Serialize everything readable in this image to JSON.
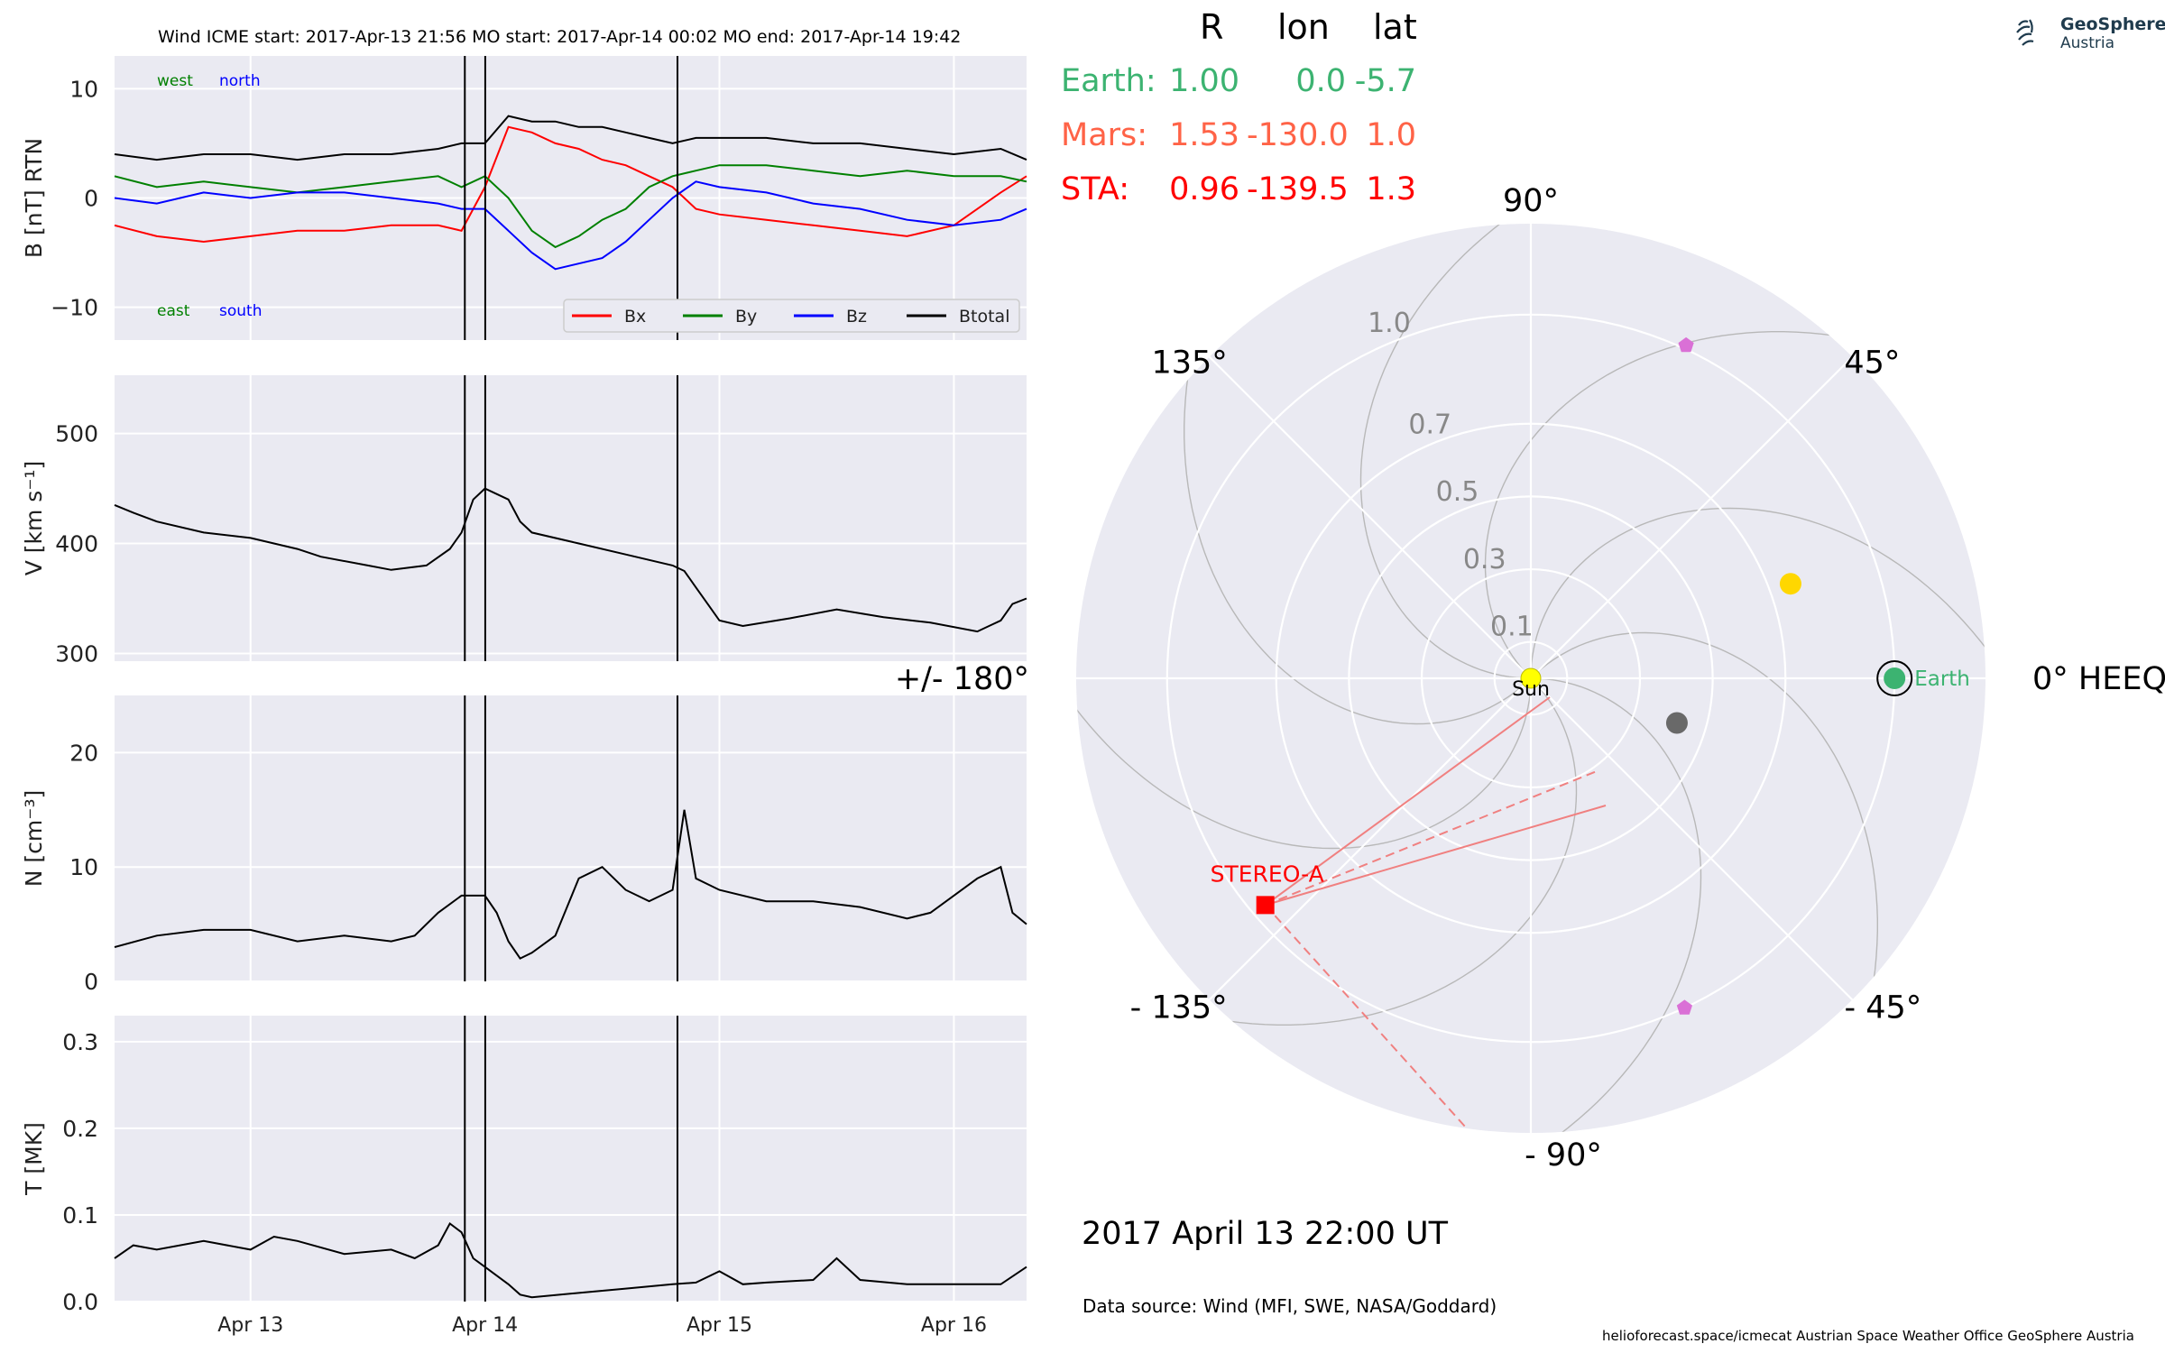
{
  "header": {
    "line": "Wind    ICME start: 2017-Apr-13 21:56   MO start: 2017-Apr-14 00:02   MO end: 2017-Apr-14 19:42"
  },
  "colors": {
    "bg_panel": "#eaeaf2",
    "bx": "#ff0000",
    "by": "#008000",
    "bz": "#0000ff",
    "btotal": "#000000",
    "earth": "#3cb371",
    "mars": "#ff6347",
    "sta": "#ff0000",
    "psp": "#ffd700",
    "solo": "#696969",
    "bepi": "#da70d6"
  },
  "logo": {
    "line1": "GeoSphere",
    "line2": "Austria",
    "icon": "geosphere-logo-icon"
  },
  "footer": {
    "date": "2017 April 13  22:00 UT",
    "source": "Data source: Wind (MFI, SWE, NASA/Goddard)",
    "credits": "helioforecast.space/icmecat   Austrian Space Weather Office   GeoSphere Austria"
  },
  "table": {
    "headers": [
      "R",
      "lon",
      "lat"
    ],
    "rows": [
      {
        "name": "Earth:",
        "R": "1.00",
        "lon": "0.0",
        "lat": "-5.7",
        "color": "#3cb371"
      },
      {
        "name": "Mars:",
        "R": "1.53",
        "lon": "-130.0",
        "lat": "1.0",
        "color": "#ff6347"
      },
      {
        "name": "STA:",
        "R": "0.96",
        "lon": "-139.5",
        "lat": "1.3",
        "color": "#ff0000"
      }
    ]
  },
  "chart_data": [
    {
      "type": "line",
      "panel": "magnetic-field",
      "ylabel": "B [nT] RTN",
      "ylim": [
        -13,
        13
      ],
      "yticks": [
        "10",
        "0",
        "−10"
      ],
      "ytick_values": [
        10,
        0,
        -10
      ],
      "grid": true,
      "legend": "bottom-right",
      "annotations": {
        "west": "west",
        "north": "north",
        "east": "east",
        "south": "south"
      },
      "x_days_range": [
        12.42,
        16.31
      ],
      "event_lines_days": [
        13.914,
        14.001,
        14.821
      ],
      "series": [
        {
          "name": "Bx",
          "color": "#ff0000",
          "x": [
            12.42,
            12.6,
            12.8,
            13.0,
            13.2,
            13.4,
            13.6,
            13.8,
            13.9,
            14.0,
            14.1,
            14.2,
            14.3,
            14.4,
            14.5,
            14.6,
            14.7,
            14.8,
            14.9,
            15.0,
            15.2,
            15.4,
            15.6,
            15.8,
            16.0,
            16.2,
            16.31
          ],
          "y": [
            -2.5,
            -3.5,
            -4,
            -3.5,
            -3,
            -3,
            -2.5,
            -2.5,
            -3,
            1,
            6.5,
            6,
            5,
            4.5,
            3.5,
            3,
            2,
            1,
            -1,
            -1.5,
            -2,
            -2.5,
            -3,
            -3.5,
            -2.5,
            0.5,
            2
          ]
        },
        {
          "name": "By",
          "color": "#008000",
          "x": [
            12.42,
            12.6,
            12.8,
            13.0,
            13.2,
            13.4,
            13.6,
            13.8,
            13.9,
            14.0,
            14.1,
            14.2,
            14.3,
            14.4,
            14.5,
            14.6,
            14.7,
            14.8,
            14.9,
            15.0,
            15.2,
            15.4,
            15.6,
            15.8,
            16.0,
            16.2,
            16.31
          ],
          "y": [
            2,
            1,
            1.5,
            1,
            0.5,
            1,
            1.5,
            2,
            1,
            2,
            0,
            -3,
            -4.5,
            -3.5,
            -2,
            -1,
            1,
            2,
            2.5,
            3,
            3,
            2.5,
            2,
            2.5,
            2,
            2,
            1.5
          ]
        },
        {
          "name": "Bz",
          "color": "#0000ff",
          "x": [
            12.42,
            12.6,
            12.8,
            13.0,
            13.2,
            13.4,
            13.6,
            13.8,
            13.9,
            14.0,
            14.1,
            14.2,
            14.3,
            14.4,
            14.5,
            14.6,
            14.7,
            14.8,
            14.9,
            15.0,
            15.2,
            15.4,
            15.6,
            15.8,
            16.0,
            16.2,
            16.31
          ],
          "y": [
            0,
            -0.5,
            0.5,
            0,
            0.5,
            0.5,
            0,
            -0.5,
            -1,
            -1,
            -3,
            -5,
            -6.5,
            -6,
            -5.5,
            -4,
            -2,
            0,
            1.5,
            1,
            0.5,
            -0.5,
            -1,
            -2,
            -2.5,
            -2,
            -1
          ]
        },
        {
          "name": "Btotal",
          "color": "#000000",
          "x": [
            12.42,
            12.6,
            12.8,
            13.0,
            13.2,
            13.4,
            13.6,
            13.8,
            13.9,
            14.0,
            14.1,
            14.2,
            14.3,
            14.4,
            14.5,
            14.6,
            14.7,
            14.8,
            14.9,
            15.0,
            15.2,
            15.4,
            15.6,
            15.8,
            16.0,
            16.2,
            16.31
          ],
          "y": [
            4,
            3.5,
            4,
            4,
            3.5,
            4,
            4,
            4.5,
            5,
            5,
            7.5,
            7,
            7,
            6.5,
            6.5,
            6,
            5.5,
            5,
            5.5,
            5.5,
            5.5,
            5,
            5,
            4.5,
            4,
            4.5,
            3.5
          ]
        }
      ]
    },
    {
      "type": "line",
      "panel": "speed",
      "ylabel": "V [km s⁻¹]",
      "ylim": [
        293,
        553
      ],
      "yticks": [
        "500",
        "400",
        "300"
      ],
      "ytick_values": [
        500,
        400,
        300
      ],
      "grid": true,
      "x_days_range": [
        12.42,
        16.31
      ],
      "event_lines_days": [
        13.914,
        14.001,
        14.821
      ],
      "series": [
        {
          "name": "",
          "color": "#000000",
          "x": [
            12.42,
            12.5,
            12.6,
            12.8,
            13.0,
            13.2,
            13.3,
            13.5,
            13.6,
            13.75,
            13.85,
            13.9,
            13.95,
            14.0,
            14.05,
            14.1,
            14.15,
            14.2,
            14.4,
            14.6,
            14.8,
            14.85,
            14.9,
            14.95,
            15.0,
            15.1,
            15.3,
            15.5,
            15.7,
            15.9,
            16.1,
            16.15,
            16.2,
            16.25,
            16.31
          ],
          "y": [
            435,
            428,
            420,
            410,
            405,
            395,
            388,
            380,
            376,
            380,
            395,
            410,
            440,
            450,
            445,
            440,
            420,
            410,
            400,
            390,
            380,
            375,
            360,
            345,
            330,
            325,
            332,
            340,
            333,
            328,
            320,
            325,
            330,
            345,
            350
          ]
        }
      ]
    },
    {
      "type": "line",
      "panel": "density",
      "ylabel": "N [cm⁻³]",
      "ylim": [
        0,
        25
      ],
      "yticks": [
        "20",
        "10",
        "0"
      ],
      "ytick_values": [
        20,
        10,
        0
      ],
      "grid": true,
      "x_days_range": [
        12.42,
        16.31
      ],
      "event_lines_days": [
        13.914,
        14.001,
        14.821
      ],
      "series": [
        {
          "name": "",
          "color": "#000000",
          "x": [
            12.42,
            12.6,
            12.8,
            13.0,
            13.2,
            13.4,
            13.6,
            13.7,
            13.8,
            13.9,
            14.0,
            14.05,
            14.1,
            14.15,
            14.2,
            14.3,
            14.4,
            14.5,
            14.6,
            14.7,
            14.8,
            14.85,
            14.9,
            15.0,
            15.2,
            15.4,
            15.6,
            15.8,
            15.9,
            16.0,
            16.1,
            16.2,
            16.25,
            16.31
          ],
          "y": [
            3,
            4,
            4.5,
            4.5,
            3.5,
            4,
            3.5,
            4,
            6,
            7.5,
            7.5,
            6,
            3.5,
            2,
            2.5,
            4,
            9,
            10,
            8,
            7,
            8,
            15,
            9,
            8,
            7,
            7,
            6.5,
            5.5,
            6,
            7.5,
            9,
            10,
            6,
            5
          ]
        }
      ]
    },
    {
      "type": "line",
      "panel": "temperature",
      "ylabel": "T [MK]",
      "ylim": [
        0,
        0.33
      ],
      "yticks": [
        "0.3",
        "0.2",
        "0.1",
        "0.0"
      ],
      "ytick_values": [
        0.3,
        0.2,
        0.1,
        0.0
      ],
      "grid": true,
      "xticks": [
        "Apr 13",
        "Apr 14",
        "Apr 15",
        "Apr 16"
      ],
      "xtick_values": [
        13,
        14,
        15,
        16
      ],
      "x_days_range": [
        12.42,
        16.31
      ],
      "event_lines_days": [
        13.914,
        14.001,
        14.821
      ],
      "series": [
        {
          "name": "",
          "color": "#000000",
          "x": [
            12.42,
            12.5,
            12.6,
            12.8,
            13.0,
            13.1,
            13.2,
            13.4,
            13.6,
            13.7,
            13.8,
            13.85,
            13.9,
            13.95,
            14.0,
            14.05,
            14.1,
            14.15,
            14.2,
            14.4,
            14.6,
            14.8,
            14.9,
            15.0,
            15.1,
            15.2,
            15.4,
            15.5,
            15.6,
            15.8,
            16.0,
            16.2,
            16.31
          ],
          "y": [
            0.05,
            0.065,
            0.06,
            0.07,
            0.06,
            0.075,
            0.07,
            0.055,
            0.06,
            0.05,
            0.065,
            0.09,
            0.08,
            0.05,
            0.04,
            0.03,
            0.02,
            0.008,
            0.005,
            0.01,
            0.015,
            0.02,
            0.022,
            0.035,
            0.02,
            0.022,
            0.025,
            0.05,
            0.025,
            0.02,
            0.02,
            0.02,
            0.04
          ]
        }
      ]
    },
    {
      "type": "scatter",
      "panel": "polar-orbit",
      "coordinate_system": "0° HEEQ",
      "angle_labels": {
        "a0": "0° HEEQ",
        "a45": "45°",
        "a90": "90°",
        "a135": "135°",
        "a180": "+/- 180°",
        "am135": "- 135°",
        "am90": "- 90°",
        "am45": "- 45°"
      },
      "radial_labels": [
        "0.1",
        "0.3",
        "0.5",
        "0.7",
        "1.0"
      ],
      "radial_tick_values": [
        0.1,
        0.3,
        0.5,
        0.7,
        1.0
      ],
      "rmax": 1.25,
      "points": [
        {
          "label": "Sun",
          "r": 0.0,
          "lon": 0,
          "color": "#ffff00"
        },
        {
          "label": "Earth",
          "r": 1.0,
          "lon": 0.0,
          "color": "#3cb371"
        },
        {
          "label": "STEREO-A",
          "r": 0.96,
          "lon": -139.5,
          "color": "#ff0000"
        },
        {
          "label": "",
          "r": 0.76,
          "lon": 20,
          "color": "#ffd700"
        },
        {
          "label": "",
          "r": 0.42,
          "lon": -17,
          "color": "#696969"
        },
        {
          "label": "",
          "r": 1.01,
          "lon": 65,
          "color": "#da70d6"
        },
        {
          "label": "",
          "r": 1.0,
          "lon": -65,
          "color": "#da70d6"
        }
      ]
    }
  ]
}
